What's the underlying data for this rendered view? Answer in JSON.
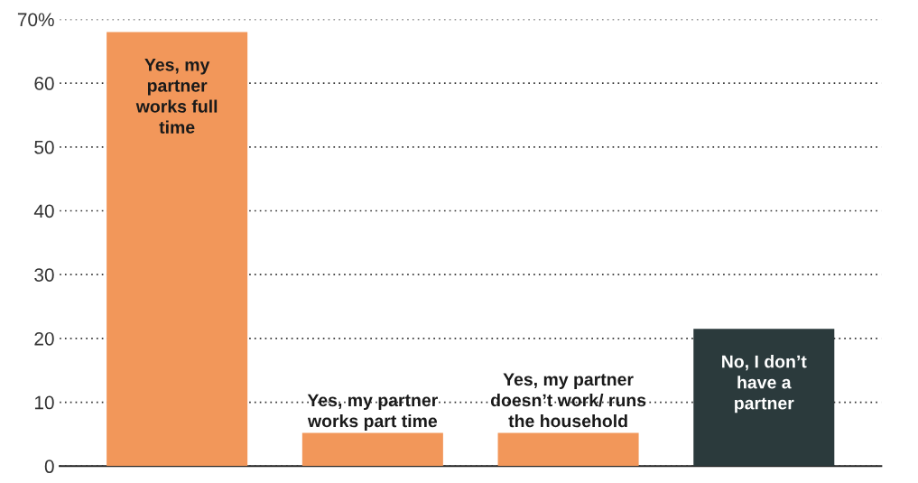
{
  "chart_data": {
    "type": "bar",
    "categories": [
      "Yes, my partner works full time",
      "Yes, my partner works part time",
      "Yes, my partner doesn’t work/ runs the household",
      "No, I don’t have a partner"
    ],
    "values": [
      68,
      5.2,
      5.2,
      21.5
    ],
    "colors": [
      "#f2975a",
      "#f2975a",
      "#f2975a",
      "#2b3a3c"
    ],
    "ylim": [
      0,
      70
    ],
    "yticks": [
      0,
      10,
      20,
      30,
      40,
      50,
      60,
      {
        "value": 70,
        "label": "70%"
      }
    ],
    "grid": "y",
    "tick_labels": "y"
  }
}
